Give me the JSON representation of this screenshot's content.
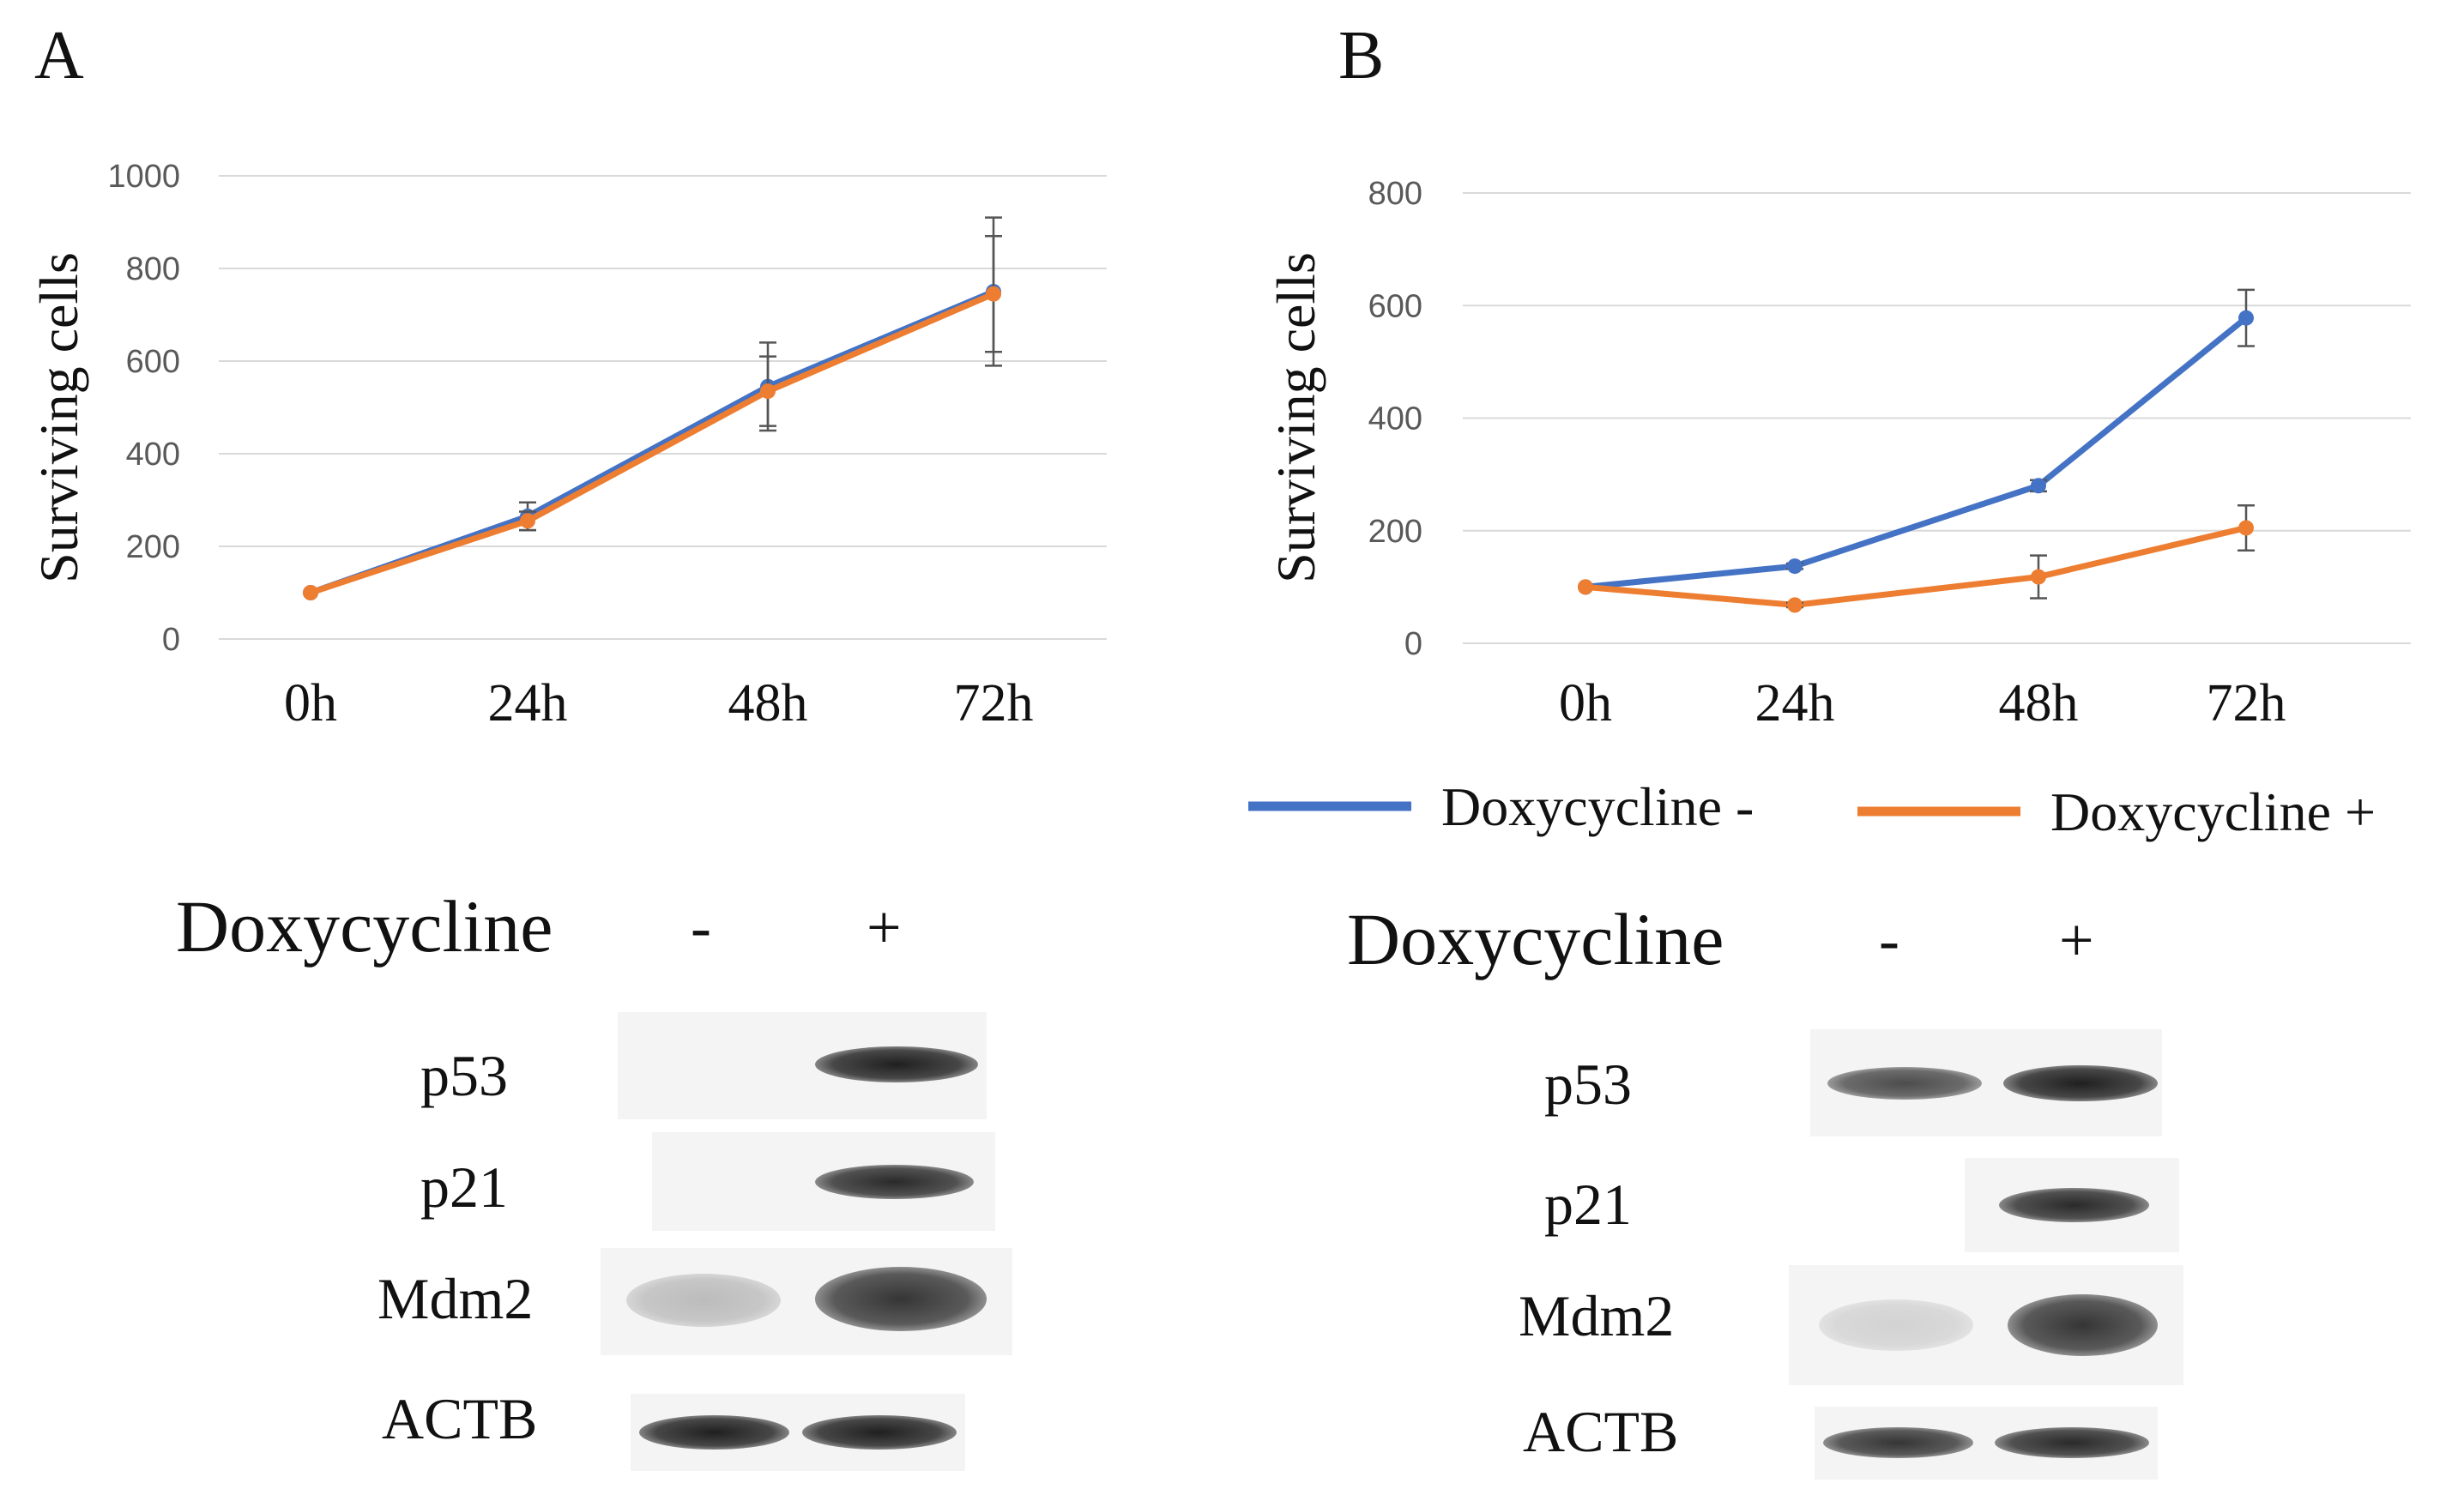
{
  "panels": {
    "A": {
      "letter": "A"
    },
    "B": {
      "letter": "B"
    }
  },
  "colors": {
    "series_minus": "#4472C4",
    "series_plus": "#ED7D31",
    "grid": "#d9d9d9",
    "tick_text": "#595959"
  },
  "chart_data": [
    {
      "type": "line",
      "title": "",
      "xlabel": "",
      "ylabel": "Surviving cells",
      "categories": [
        "0h",
        "24h",
        "48h",
        "72h"
      ],
      "ylim": [
        0,
        1000
      ],
      "yticks": [
        0,
        200,
        400,
        600,
        800,
        1000
      ],
      "grid": true,
      "legend": null,
      "series": [
        {
          "name": "Doxycycline -",
          "values": [
            100,
            265,
            545,
            750
          ],
          "errors": [
            0,
            30,
            95,
            160
          ]
        },
        {
          "name": "Doxycycline +",
          "values": [
            100,
            255,
            535,
            745
          ],
          "errors": [
            0,
            20,
            75,
            125
          ]
        }
      ]
    },
    {
      "type": "line",
      "title": "",
      "xlabel": "",
      "ylabel": "Surviving cells",
      "categories": [
        "0h",
        "24h",
        "48h",
        "72h"
      ],
      "ylim": [
        0,
        800
      ],
      "yticks": [
        0,
        200,
        400,
        600,
        800
      ],
      "grid": true,
      "legend": "bottom",
      "series": [
        {
          "name": "Doxycycline -",
          "values": [
            100,
            137,
            280,
            578
          ],
          "errors": [
            0,
            5,
            10,
            50
          ]
        },
        {
          "name": "Doxycycline +",
          "values": [
            100,
            68,
            118,
            205
          ],
          "errors": [
            0,
            4,
            38,
            40
          ]
        }
      ]
    }
  ],
  "westerns": [
    {
      "title": "Doxycycline",
      "minus": "-",
      "plus": "+",
      "rows": [
        {
          "label": "p53",
          "minus_intensity": 0.0,
          "plus_intensity": 0.95
        },
        {
          "label": "p21",
          "minus_intensity": 0.0,
          "plus_intensity": 0.9
        },
        {
          "label": "Mdm2",
          "minus_intensity": 0.25,
          "plus_intensity": 0.85
        },
        {
          "label": "ACTB",
          "minus_intensity": 0.95,
          "plus_intensity": 0.95
        }
      ]
    },
    {
      "title": "Doxycycline",
      "minus": "-",
      "plus": "+",
      "rows": [
        {
          "label": "p53",
          "minus_intensity": 0.75,
          "plus_intensity": 0.95
        },
        {
          "label": "p21",
          "minus_intensity": 0.0,
          "plus_intensity": 0.9
        },
        {
          "label": "Mdm2",
          "minus_intensity": 0.15,
          "plus_intensity": 0.85
        },
        {
          "label": "ACTB",
          "minus_intensity": 0.85,
          "plus_intensity": 0.9
        }
      ]
    }
  ]
}
